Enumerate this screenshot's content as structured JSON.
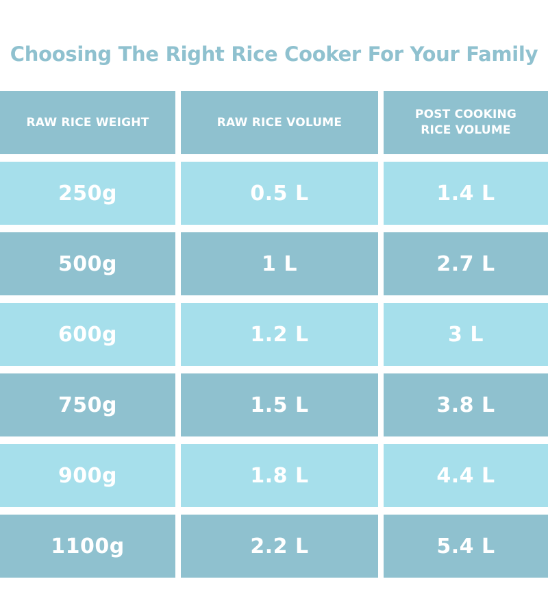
{
  "title": "Choosing The Right Rice Cooker For Your Family",
  "colors": {
    "title": "#8fc1cf",
    "header_fill": "#8fc1cf",
    "row_light": "#a6dfeb",
    "row_dark": "#8fc1cf",
    "text": "#ffffff"
  },
  "table": {
    "headers": [
      "RAW RICE WEIGHT",
      "RAW RICE VOLUME",
      "POST COOKING RICE VOLUME"
    ],
    "rows": [
      [
        "250g",
        "0.5 L",
        "1.4 L"
      ],
      [
        "500g",
        "1 L",
        "2.7 L"
      ],
      [
        "600g",
        "1.2 L",
        "3 L"
      ],
      [
        "750g",
        "1.5 L",
        "3.8 L"
      ],
      [
        "900g",
        "1.8 L",
        "4.4 L"
      ],
      [
        "1100g",
        "2.2 L",
        "5.4 L"
      ]
    ]
  }
}
